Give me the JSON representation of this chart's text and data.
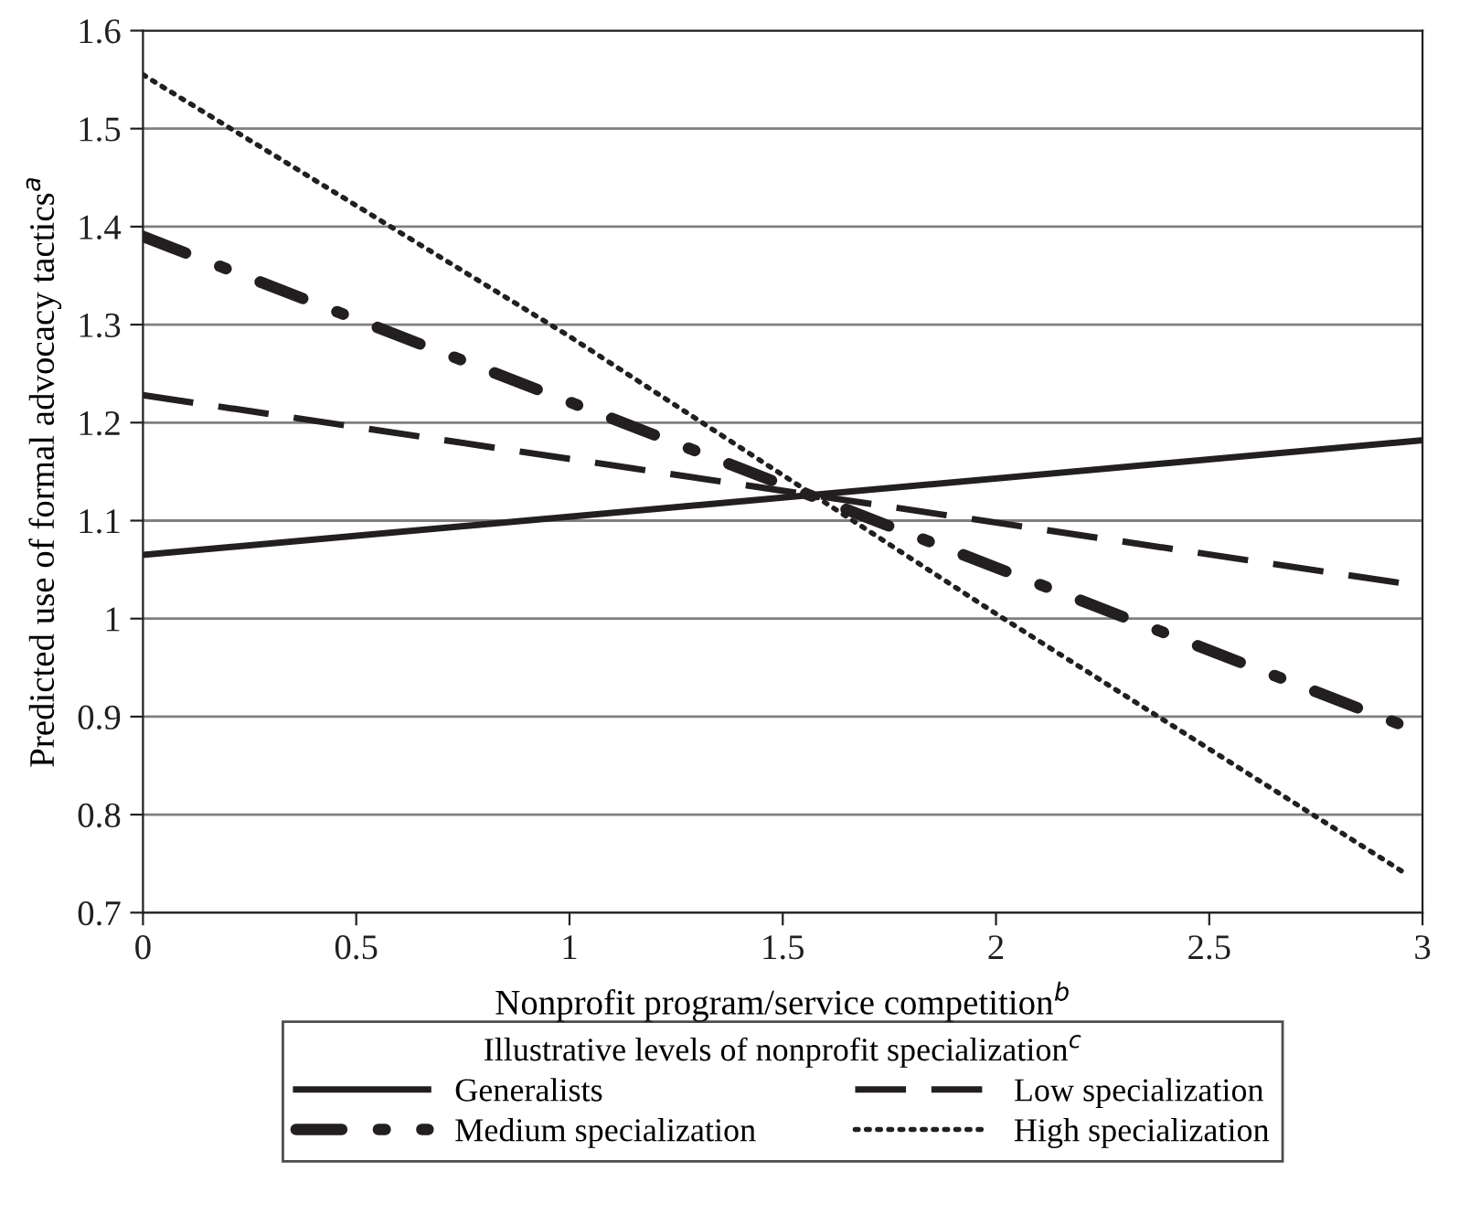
{
  "chart_data": {
    "type": "line",
    "xlabel": "Nonprofit program/service competition$^{b}$",
    "ylabel": "Predicted use of formal advocacy tactics$^{a}$",
    "legend_title": "Illustrative levels of nonprofit specialization$^{c}$",
    "xlim": [
      0,
      3
    ],
    "xticks": [
      0,
      0.5,
      1,
      1.5,
      2,
      2.5,
      3
    ],
    "ylim": [
      0.7,
      1.6
    ],
    "yticks": [
      0.7,
      0.8,
      0.9,
      1,
      1.1,
      1.2,
      1.3,
      1.4,
      1.5,
      1.6
    ],
    "grid": "y",
    "legend": "bottom",
    "series": [
      {
        "name": "Generalists",
        "color": "#231f20",
        "line_style": "solid",
        "x": [
          0,
          3
        ],
        "values": [
          1.065,
          1.182
        ]
      },
      {
        "name": "Low specialization",
        "color": "#231f20",
        "line_style": "dashed",
        "x": [
          0,
          3
        ],
        "values": [
          1.228,
          1.033
        ]
      },
      {
        "name": "Medium specialization",
        "color": "#231f20",
        "line_style": "dashdot",
        "x": [
          0,
          2.96
        ],
        "values": [
          1.39,
          0.89
        ]
      },
      {
        "name": "High specialization",
        "color": "#231f20",
        "line_style": "dotted",
        "x": [
          0,
          1,
          2,
          2.96
        ],
        "values": [
          1.555,
          1.288,
          1.005,
          0.74
        ]
      }
    ]
  }
}
